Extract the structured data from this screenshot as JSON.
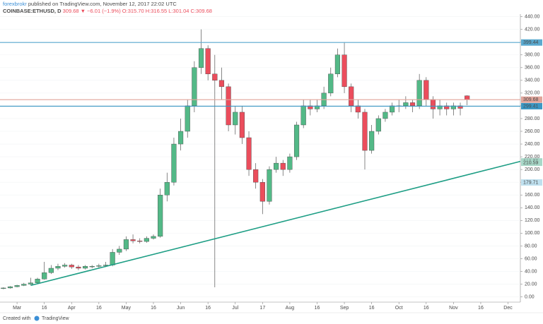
{
  "header": {
    "author": "forexbrokr",
    "published": "published on TradingView.com, November 12, 2017 22:02 UTC",
    "symbol": "COINBASE:ETHUSD, D",
    "last": "309.68",
    "change": "▼ −6.01 (−1.9%)",
    "ohlc": "O:315.70 H:316.55 L:301.04 C:309.68"
  },
  "footer": {
    "created": "Created with",
    "brand": "TradingView"
  },
  "chart_data": {
    "type": "candlestick",
    "categories": [
      null,
      null,
      "Mar",
      null,
      null,
      null,
      "16",
      null,
      null,
      null,
      "Apr",
      null,
      null,
      null,
      "16",
      null,
      null,
      null,
      "May",
      null,
      null,
      null,
      "16",
      null,
      null,
      null,
      "Jun",
      null,
      null,
      null,
      "16",
      null,
      null,
      null,
      "Jul",
      null,
      null,
      null,
      "17",
      null,
      null,
      null,
      "Aug",
      null,
      null,
      null,
      "16",
      null,
      null,
      null,
      "Sep",
      null,
      null,
      null,
      "16",
      null,
      null,
      null,
      "Oct",
      null,
      null,
      null,
      "16",
      null,
      null,
      null,
      "Nov",
      null,
      null,
      null,
      "16",
      null,
      null,
      null,
      "Dec",
      null
    ],
    "open": [
      13,
      14,
      16,
      18,
      20,
      22,
      28,
      38,
      45,
      48,
      50,
      47,
      45,
      48,
      48,
      49,
      50,
      70,
      75,
      90,
      88,
      87,
      92,
      95,
      160,
      180,
      240,
      260,
      300,
      360,
      390,
      350,
      340,
      330,
      270,
      290,
      250,
      200,
      180,
      150,
      200,
      210,
      200,
      220,
      270,
      300,
      295,
      300,
      320,
      350,
      380,
      330,
      300,
      290,
      230,
      260,
      280,
      290,
      300,
      300,
      305,
      300,
      340,
      310,
      295,
      300,
      295,
      300,
      315.7,
      null,
      null,
      null,
      null,
      null,
      null,
      null
    ],
    "high": [
      15,
      17,
      19,
      22,
      30,
      30,
      55,
      50,
      52,
      53,
      52,
      50,
      50,
      50,
      52,
      55,
      75,
      80,
      95,
      98,
      92,
      95,
      98,
      170,
      195,
      250,
      280,
      310,
      370,
      420,
      395,
      380,
      360,
      335,
      300,
      300,
      260,
      210,
      185,
      205,
      220,
      215,
      225,
      275,
      310,
      310,
      310,
      330,
      360,
      390,
      400,
      335,
      310,
      295,
      270,
      285,
      295,
      305,
      310,
      315,
      310,
      350,
      345,
      315,
      310,
      305,
      305,
      305,
      316.55,
      null,
      null,
      null,
      null,
      null,
      null,
      null
    ],
    "low": [
      12,
      13,
      15,
      17,
      19,
      21,
      27,
      36,
      42,
      46,
      44,
      42,
      43,
      45,
      46,
      47,
      48,
      66,
      72,
      84,
      84,
      85,
      90,
      93,
      150,
      175,
      230,
      250,
      290,
      350,
      340,
      15,
      310,
      260,
      255,
      240,
      190,
      170,
      130,
      145,
      195,
      190,
      195,
      215,
      265,
      285,
      290,
      295,
      315,
      345,
      320,
      290,
      280,
      200,
      225,
      255,
      275,
      285,
      290,
      295,
      290,
      295,
      300,
      280,
      285,
      285,
      285,
      285,
      301.04,
      null,
      null,
      null,
      null,
      null,
      null,
      null
    ],
    "close": [
      14,
      16,
      18,
      20,
      22,
      28,
      38,
      45,
      48,
      50,
      47,
      45,
      48,
      48,
      49,
      50,
      70,
      75,
      90,
      88,
      87,
      92,
      95,
      160,
      180,
      240,
      260,
      300,
      360,
      390,
      350,
      340,
      330,
      270,
      290,
      250,
      200,
      180,
      150,
      200,
      210,
      200,
      220,
      270,
      300,
      295,
      300,
      320,
      350,
      380,
      330,
      300,
      290,
      230,
      260,
      280,
      290,
      300,
      300,
      305,
      300,
      340,
      310,
      295,
      300,
      295,
      300,
      296,
      309.68,
      null,
      null,
      null,
      null,
      null,
      null,
      null
    ],
    "up_color": "#53b987",
    "down_color": "#eb4d5c",
    "ylim": [
      -6,
      444
    ],
    "yticks": [
      {
        "value": 0,
        "label": "0.00"
      },
      {
        "value": 20,
        "label": "20.00"
      },
      {
        "value": 40,
        "label": "40.00"
      },
      {
        "value": 60,
        "label": "60.00"
      },
      {
        "value": 80,
        "label": "80.00"
      },
      {
        "value": 100,
        "label": "100.00"
      },
      {
        "value": 120,
        "label": "120.00"
      },
      {
        "value": 140,
        "label": "140.00"
      },
      {
        "value": 160,
        "label": "160.00"
      },
      {
        "value": 180,
        "label": "180.00"
      },
      {
        "value": 200,
        "label": "200.00"
      },
      {
        "value": 220,
        "label": "220.00"
      },
      {
        "value": 240,
        "label": "240.00"
      },
      {
        "value": 260,
        "label": "260.00"
      },
      {
        "value": 280,
        "label": "280.00"
      },
      {
        "value": 300,
        "label": "300.00"
      },
      {
        "value": 320,
        "label": "320.00"
      },
      {
        "value": 340,
        "label": "340.00"
      },
      {
        "value": 360,
        "label": "360.00"
      },
      {
        "value": 380,
        "label": "380.00"
      },
      {
        "value": 400,
        "label": "400.00"
      },
      {
        "value": 420,
        "label": "420.00"
      },
      {
        "value": 440,
        "label": "440.00"
      }
    ],
    "grid": true,
    "levels": [
      {
        "value": 399.44,
        "color": "#5aa9cf"
      },
      {
        "value": 309.68,
        "color": "#e0a49a"
      },
      {
        "value": 299.41,
        "color": "#3b97c4"
      }
    ],
    "trendline": {
      "values": [
        18,
        212.75
      ],
      "color": "#1e9e85"
    },
    "axis_tags": [
      {
        "value": 210.59,
        "color": "#a8d8c8"
      },
      {
        "value": 179.71,
        "color": "#bfe0ef"
      }
    ]
  }
}
